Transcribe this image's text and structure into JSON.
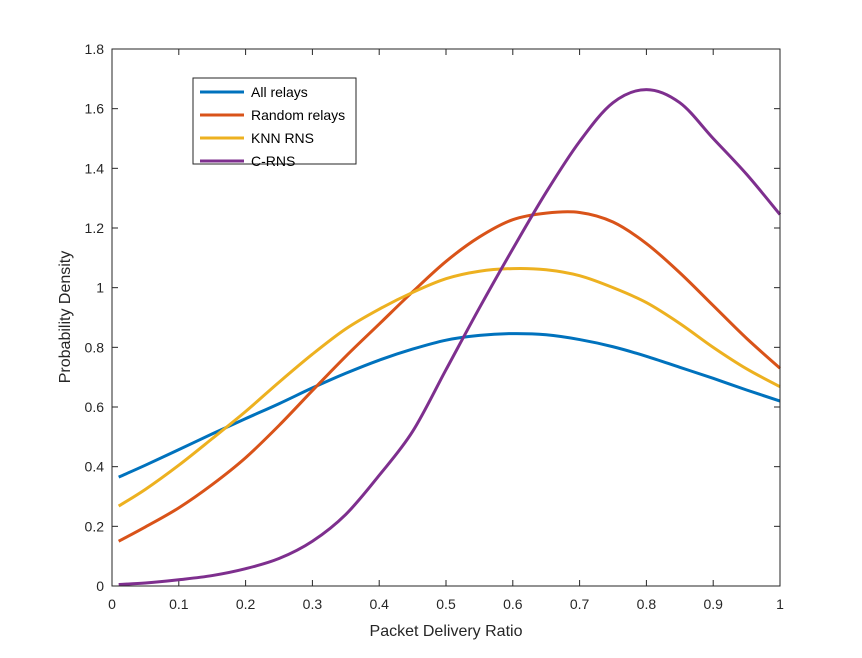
{
  "chart_data": {
    "type": "line",
    "title": "",
    "xlabel": "Packet Delivery Ratio",
    "ylabel": "Probability Density",
    "xlim": [
      0,
      1
    ],
    "ylim": [
      0,
      1.8
    ],
    "xticks": [
      "0",
      "0.1",
      "0.2",
      "0.3",
      "0.4",
      "0.5",
      "0.6",
      "0.7",
      "0.8",
      "0.9",
      "1"
    ],
    "yticks": [
      "0",
      "0.2",
      "0.4",
      "0.6",
      "0.8",
      "1",
      "1.2",
      "1.4",
      "1.6",
      "1.8"
    ],
    "legend_position": "top-left",
    "x": [
      0.01,
      0.05,
      0.1,
      0.15,
      0.2,
      0.25,
      0.3,
      0.35,
      0.4,
      0.45,
      0.5,
      0.55,
      0.6,
      0.65,
      0.7,
      0.75,
      0.8,
      0.85,
      0.9,
      0.95,
      1.0
    ],
    "series": [
      {
        "name": "All relays",
        "color": "#0072BD",
        "values": [
          0.365,
          0.405,
          0.457,
          0.51,
          0.561,
          0.611,
          0.664,
          0.713,
          0.757,
          0.794,
          0.824,
          0.84,
          0.846,
          0.842,
          0.826,
          0.802,
          0.77,
          0.733,
          0.696,
          0.657,
          0.62
        ]
      },
      {
        "name": "Random relays",
        "color": "#D95319",
        "values": [
          0.15,
          0.198,
          0.262,
          0.34,
          0.43,
          0.538,
          0.655,
          0.77,
          0.878,
          0.986,
          1.088,
          1.17,
          1.228,
          1.25,
          1.252,
          1.22,
          1.148,
          1.05,
          0.94,
          0.83,
          0.73
        ]
      },
      {
        "name": "KNN RNS",
        "color": "#EDB120",
        "values": [
          0.268,
          0.324,
          0.405,
          0.494,
          0.585,
          0.683,
          0.777,
          0.862,
          0.928,
          0.984,
          1.03,
          1.055,
          1.064,
          1.06,
          1.04,
          1.0,
          0.95,
          0.88,
          0.8,
          0.728,
          0.668
        ]
      },
      {
        "name": "C-RNS",
        "color": "#7E2F8E",
        "values": [
          0.005,
          0.01,
          0.021,
          0.035,
          0.058,
          0.092,
          0.15,
          0.24,
          0.371,
          0.518,
          0.725,
          0.932,
          1.13,
          1.32,
          1.49,
          1.62,
          1.664,
          1.62,
          1.5,
          1.38,
          1.245
        ]
      }
    ]
  }
}
